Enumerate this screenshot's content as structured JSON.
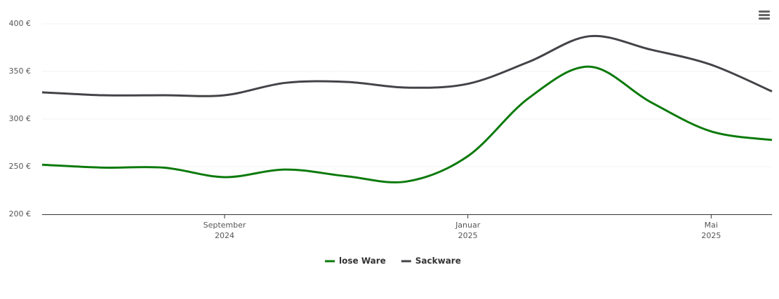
{
  "chart_data": {
    "type": "line",
    "x": [
      "2024-06",
      "2024-07",
      "2024-08",
      "2024-09",
      "2024-10",
      "2024-11",
      "2024-12",
      "2025-01",
      "2025-02",
      "2025-03",
      "2025-04",
      "2025-05",
      "2025-06"
    ],
    "series": [
      {
        "name": "lose Ware",
        "color": "#0b7a0b",
        "values": [
          252,
          249,
          249,
          239,
          247,
          240,
          234.5,
          261,
          322,
          355,
          318,
          287,
          278
        ]
      },
      {
        "name": "Sackware",
        "color": "#434348",
        "values": [
          328,
          325,
          325,
          325,
          338,
          339,
          333,
          337,
          360,
          387,
          373,
          357,
          329
        ]
      }
    ],
    "xlim": [
      "2024-06",
      "2025-06"
    ],
    "xticks": [
      {
        "value": "2024-09",
        "label": "September 2024"
      },
      {
        "value": "2025-01",
        "label": "Januar 2025"
      },
      {
        "value": "2025-05",
        "label": "Mai 2025"
      }
    ],
    "ylim": [
      200,
      400
    ],
    "yticks": [
      {
        "value": 200,
        "label": "200 €"
      },
      {
        "value": 250,
        "label": "250 €"
      },
      {
        "value": 300,
        "label": "300 €"
      },
      {
        "value": 350,
        "label": "350 €"
      },
      {
        "value": 400,
        "label": "400 €"
      }
    ],
    "grid": true,
    "legend": "bottom"
  }
}
